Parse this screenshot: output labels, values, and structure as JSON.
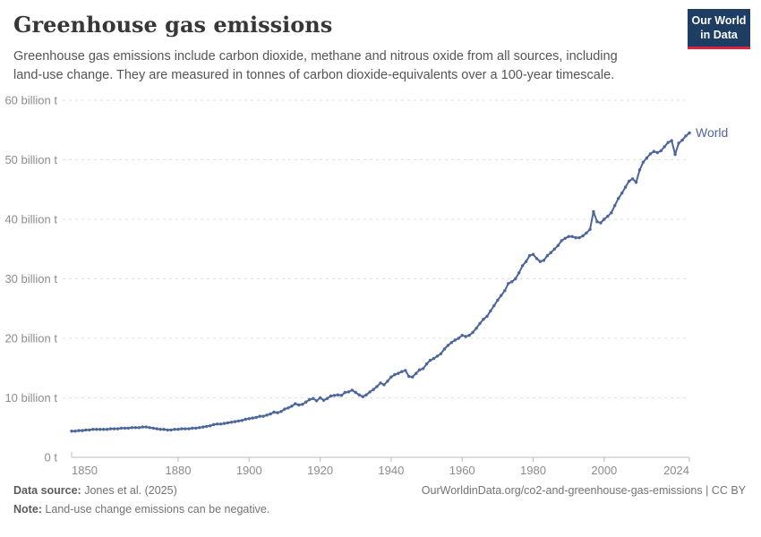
{
  "header": {
    "title": "Greenhouse gas emissions",
    "subtitle_line1": "Greenhouse gas emissions include carbon dioxide, methane and nitrous oxide from all sources, including",
    "subtitle_line2": "land-use change. They are measured in tonnes of carbon dioxide-equivalents over a 100-year timescale.",
    "logo": {
      "line1": "Our World",
      "line2": "in Data"
    }
  },
  "chart_data": {
    "type": "line",
    "title": "Greenhouse gas emissions",
    "xlabel": "",
    "ylabel": "",
    "xlim": [
      1850,
      2024
    ],
    "ylim": [
      0,
      60
    ],
    "grid": "horizontal-dashed",
    "legend_position": "end-of-line",
    "x_ticks": [
      1850,
      1880,
      1900,
      1920,
      1940,
      1960,
      1980,
      2000,
      2024
    ],
    "y_ticks": [
      {
        "value": 0,
        "label": "0 t"
      },
      {
        "value": 10,
        "label": "10 billion t"
      },
      {
        "value": 20,
        "label": "20 billion t"
      },
      {
        "value": 30,
        "label": "30 billion t"
      },
      {
        "value": 40,
        "label": "40 billion t"
      },
      {
        "value": 50,
        "label": "50 billion t"
      },
      {
        "value": 60,
        "label": "60 billion t"
      }
    ],
    "series": [
      {
        "name": "World",
        "x_start": 1850,
        "x_step": 1,
        "unit": "billion t",
        "values": [
          4.4,
          4.4,
          4.5,
          4.5,
          4.6,
          4.6,
          4.7,
          4.7,
          4.7,
          4.7,
          4.7,
          4.8,
          4.8,
          4.8,
          4.9,
          4.9,
          4.9,
          5.0,
          5.0,
          5.0,
          5.1,
          5.1,
          5.0,
          4.9,
          4.8,
          4.7,
          4.7,
          4.6,
          4.6,
          4.7,
          4.7,
          4.8,
          4.8,
          4.8,
          4.9,
          4.9,
          5.0,
          5.1,
          5.2,
          5.3,
          5.5,
          5.6,
          5.6,
          5.7,
          5.8,
          5.9,
          6.0,
          6.1,
          6.2,
          6.4,
          6.5,
          6.6,
          6.7,
          6.9,
          6.9,
          7.1,
          7.3,
          7.6,
          7.5,
          7.7,
          8.1,
          8.3,
          8.6,
          9.0,
          8.8,
          8.9,
          9.3,
          9.7,
          9.9,
          9.5,
          10.0,
          9.6,
          9.9,
          10.3,
          10.4,
          10.5,
          10.4,
          10.9,
          11.0,
          11.3,
          10.9,
          10.5,
          10.2,
          10.5,
          11.0,
          11.4,
          11.9,
          12.5,
          12.2,
          12.8,
          13.5,
          13.9,
          14.1,
          14.4,
          14.6,
          13.6,
          13.5,
          14.1,
          14.7,
          14.9,
          15.7,
          16.3,
          16.6,
          17.0,
          17.4,
          18.2,
          18.8,
          19.3,
          19.7,
          20.0,
          20.5,
          20.3,
          20.5,
          21.0,
          21.7,
          22.5,
          23.2,
          23.7,
          24.6,
          25.5,
          26.4,
          27.2,
          28.0,
          29.2,
          29.5,
          30.0,
          31.0,
          32.2,
          32.9,
          33.9,
          34.1,
          33.4,
          32.9,
          33.1,
          33.9,
          34.4,
          35.0,
          35.6,
          36.4,
          36.8,
          37.1,
          37.1,
          36.9,
          36.9,
          37.2,
          37.7,
          38.3,
          41.3,
          39.6,
          39.4,
          40.0,
          40.5,
          41.1,
          42.3,
          43.5,
          44.4,
          45.4,
          46.4,
          46.8,
          46.2,
          48.3,
          49.6,
          50.3,
          51.0,
          51.4,
          51.2,
          51.5,
          52.2,
          52.9,
          53.2,
          50.9,
          52.8,
          53.3,
          54.0,
          54.5
        ]
      }
    ]
  },
  "footer": {
    "source_label": "Data source:",
    "source_value": " Jones et al. (2025)",
    "note_label": "Note:",
    "note_value": " Land-use change emissions can be negative.",
    "url_text": "OurWorldinData.org/co2-and-greenhouse-gas-emissions | CC BY"
  },
  "colors": {
    "series": "#4c669c",
    "title_text": "#383636",
    "subtitle_text": "#555555",
    "tick_text": "#8c8c8c",
    "grid": "#e0e0e0",
    "axis": "#bdbdbd",
    "logo_bg": "#1d3d63",
    "logo_red": "#e0233c"
  }
}
